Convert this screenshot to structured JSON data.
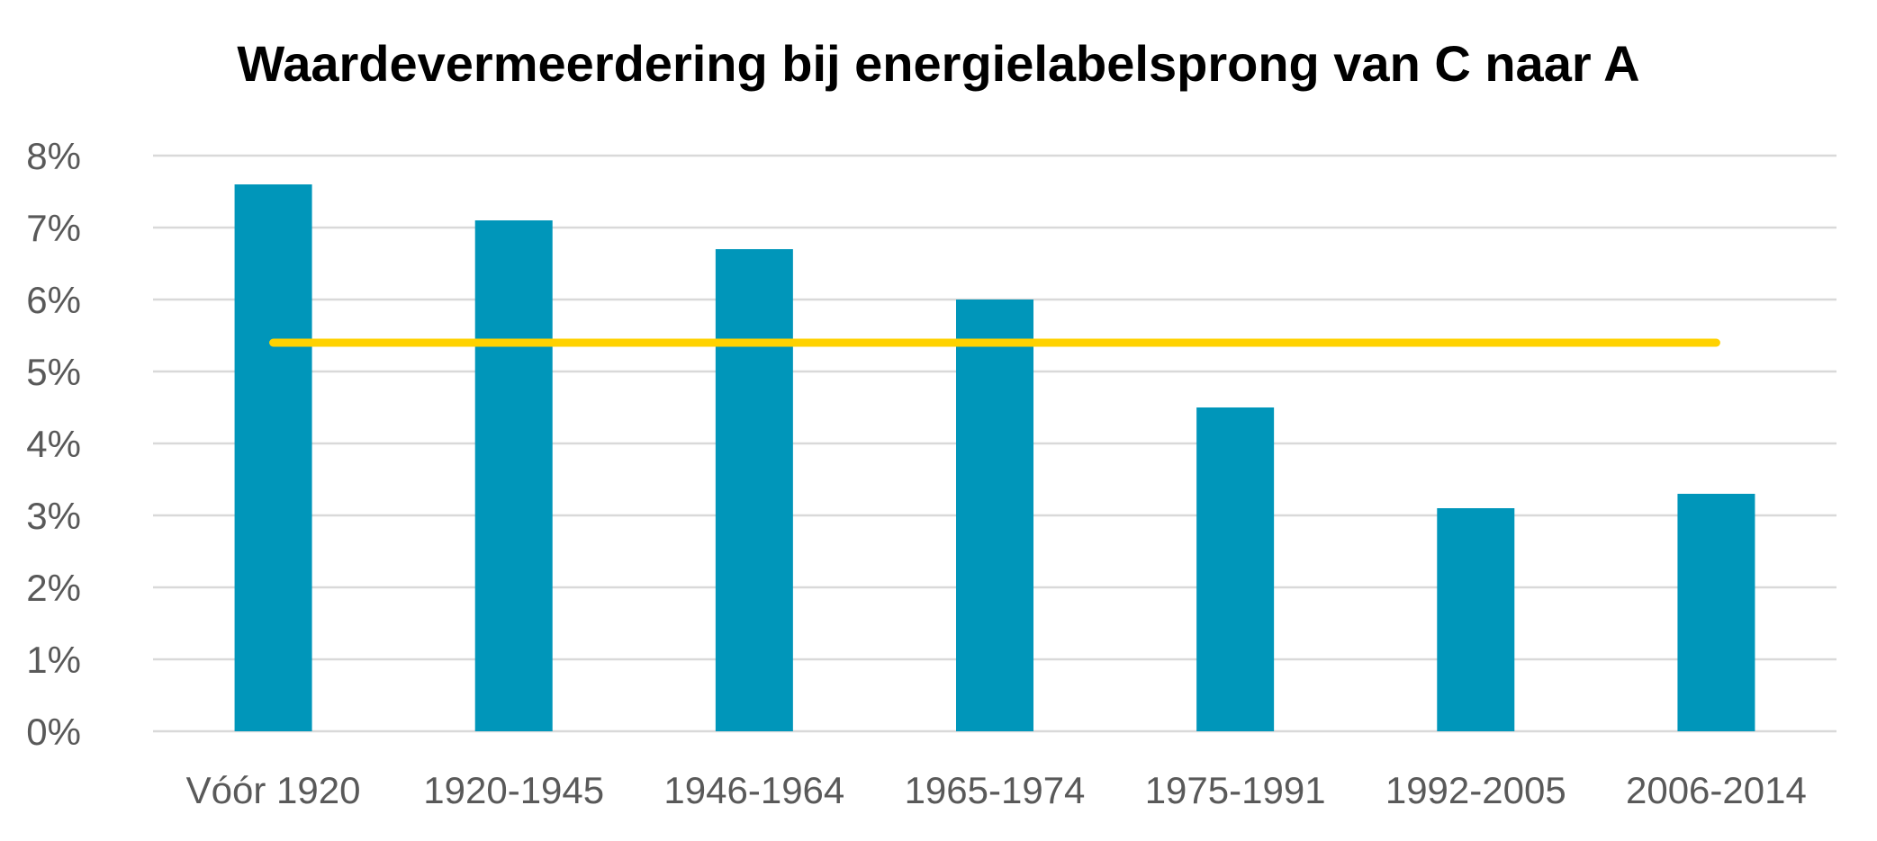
{
  "chart_data": {
    "type": "bar",
    "title": "Waardevermeerdering bij energielabelsprong van C naar A",
    "xlabel": "",
    "ylabel": "",
    "categories": [
      "Vóór 1920",
      "1920-1945",
      "1946-1964",
      "1965-1974",
      "1975-1991",
      "1992-2005",
      "2006-2014"
    ],
    "series": [
      {
        "type": "bar",
        "values": [
          7.6,
          7.1,
          6.7,
          6.0,
          4.5,
          3.1,
          3.3
        ],
        "color": "#0096BA"
      },
      {
        "type": "line",
        "values": [
          5.4,
          5.4,
          5.4,
          5.4,
          5.4,
          5.4,
          5.4
        ],
        "color": "#FFD200"
      }
    ],
    "ylim": [
      0,
      8
    ],
    "yticks": [
      "0%",
      "1%",
      "2%",
      "3%",
      "4%",
      "5%",
      "6%",
      "7%",
      "8%"
    ],
    "grid": true,
    "gridcolor": "#D9D9D9",
    "legend": "none"
  }
}
